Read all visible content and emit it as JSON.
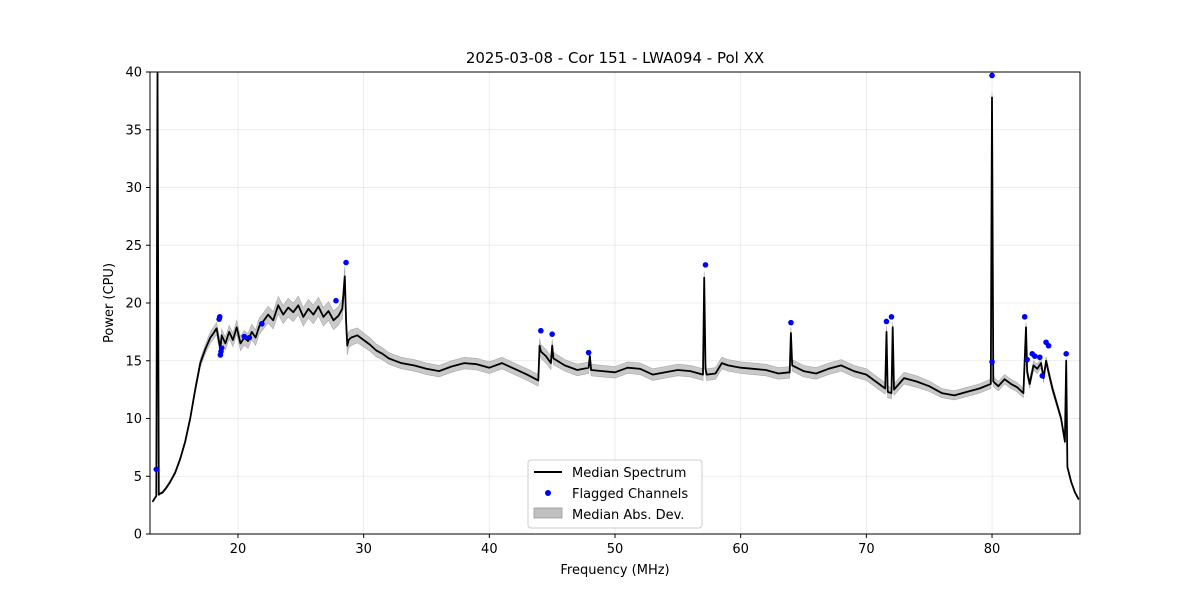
{
  "chart_data": {
    "type": "line",
    "title": "2025-03-08 - Cor 151 - LWA094 - Pol XX",
    "xlabel": "Frequency (MHz)",
    "ylabel": "Power (CPU)",
    "xlim": [
      13.0,
      87.0
    ],
    "ylim": [
      0,
      40
    ],
    "xticks": [
      20,
      30,
      40,
      50,
      60,
      70,
      80
    ],
    "yticks": [
      0,
      5,
      10,
      15,
      20,
      25,
      30,
      35,
      40
    ],
    "grid": true,
    "legend_position": "bottom-center",
    "legend": [
      "Median Spectrum",
      "Flagged Channels",
      "Median Abs. Dev."
    ],
    "colors": {
      "median": "#000000",
      "flagged": "#0000ff",
      "mad": "#c0c0c0"
    },
    "series": [
      {
        "name": "Median Spectrum",
        "x": [
          13.2,
          13.5,
          13.6,
          13.7,
          13.8,
          14.0,
          14.3,
          14.6,
          15.0,
          15.4,
          15.8,
          16.2,
          16.6,
          17.0,
          17.4,
          17.8,
          18.0,
          18.3,
          18.6,
          18.7,
          19.0,
          19.3,
          19.6,
          19.9,
          20.2,
          20.5,
          20.8,
          21.1,
          21.4,
          21.7,
          22.0,
          22.4,
          22.8,
          23.2,
          23.6,
          24.0,
          24.4,
          24.8,
          25.2,
          25.6,
          26.0,
          26.4,
          26.8,
          27.2,
          27.6,
          28.0,
          28.3,
          28.5,
          28.6,
          28.7,
          28.8,
          29.0,
          29.5,
          30.0,
          30.5,
          31.0,
          31.5,
          32.0,
          32.5,
          33.0,
          34.0,
          35.0,
          36.0,
          37.0,
          38.0,
          39.0,
          40.0,
          41.0,
          42.0,
          43.0,
          43.9,
          44.0,
          44.1,
          44.5,
          44.9,
          45.0,
          45.1,
          46.0,
          47.0,
          47.9,
          48.0,
          48.1,
          49.0,
          50.0,
          51.0,
          52.0,
          53.0,
          54.0,
          55.0,
          56.0,
          57.0,
          57.1,
          57.2,
          57.3,
          58.0,
          58.5,
          59.0,
          60.0,
          61.0,
          62.0,
          63.0,
          63.9,
          64.0,
          64.1,
          65.0,
          66.0,
          67.0,
          68.0,
          69.0,
          70.0,
          71.0,
          71.5,
          71.6,
          71.7,
          72.0,
          72.1,
          72.2,
          73.0,
          74.0,
          75.0,
          76.0,
          77.0,
          78.0,
          79.0,
          79.9,
          80.0,
          80.1,
          80.5,
          81.0,
          81.5,
          82.0,
          82.5,
          82.7,
          82.8,
          83.0,
          83.3,
          83.6,
          83.9,
          84.1,
          84.3,
          84.5,
          84.8,
          85.1,
          85.5,
          85.8,
          85.9,
          86.0,
          86.3,
          86.6,
          86.9
        ],
        "values": [
          2.8,
          3.3,
          40,
          3.4,
          3.5,
          3.6,
          4.0,
          4.5,
          5.3,
          6.5,
          8.0,
          10.0,
          12.5,
          14.8,
          16.0,
          17.0,
          17.3,
          17.8,
          16.0,
          17.2,
          16.5,
          17.5,
          16.8,
          17.9,
          16.5,
          17.0,
          16.7,
          17.5,
          17.0,
          18.0,
          18.4,
          19.0,
          18.5,
          19.8,
          19.0,
          19.6,
          19.2,
          19.8,
          18.8,
          19.5,
          19.0,
          19.7,
          18.8,
          19.3,
          18.5,
          18.9,
          19.5,
          22.3,
          18.4,
          16.3,
          16.8,
          17.0,
          17.2,
          16.8,
          16.4,
          15.9,
          15.6,
          15.2,
          15.0,
          14.8,
          14.6,
          14.3,
          14.1,
          14.5,
          14.8,
          14.7,
          14.4,
          14.8,
          14.3,
          13.8,
          13.3,
          16.3,
          15.8,
          15.4,
          14.8,
          16.3,
          15.2,
          14.6,
          14.2,
          14.4,
          15.4,
          14.2,
          14.1,
          14.0,
          14.4,
          14.3,
          13.8,
          14.0,
          14.2,
          14.1,
          13.8,
          22.2,
          14.3,
          13.8,
          13.9,
          14.8,
          14.6,
          14.4,
          14.3,
          14.2,
          13.9,
          14.0,
          17.4,
          14.6,
          14.1,
          13.9,
          14.3,
          14.6,
          14.1,
          13.8,
          13.0,
          12.6,
          17.5,
          12.3,
          12.2,
          17.9,
          12.5,
          13.5,
          13.2,
          12.8,
          12.2,
          12.0,
          12.3,
          12.6,
          13.0,
          37.8,
          13.2,
          12.8,
          13.4,
          13.0,
          12.7,
          12.2,
          17.9,
          14.0,
          13.0,
          14.6,
          14.3,
          14.8,
          13.5,
          15.0,
          14.0,
          12.6,
          11.5,
          10.0,
          8.0,
          15.0,
          5.8,
          4.5,
          3.6,
          3.0
        ]
      },
      {
        "name": "Flagged Channels",
        "x": [
          13.5,
          18.5,
          18.55,
          18.6,
          18.65,
          18.7,
          20.5,
          20.9,
          21.9,
          27.8,
          28.6,
          44.1,
          45.0,
          47.9,
          57.2,
          64.0,
          71.6,
          72.0,
          80.0,
          80.0,
          82.6,
          82.8,
          83.2,
          83.4,
          83.8,
          84.0,
          84.3,
          84.5,
          85.9
        ],
        "values": [
          5.6,
          18.6,
          18.8,
          15.5,
          15.8,
          16.1,
          17.1,
          17.0,
          18.2,
          20.2,
          23.5,
          17.6,
          17.3,
          15.7,
          23.3,
          18.3,
          18.4,
          18.8,
          39.7,
          14.9,
          18.8,
          15.1,
          15.6,
          15.4,
          15.3,
          13.7,
          16.6,
          16.3,
          15.6
        ]
      },
      {
        "name": "Median Abs. Dev.",
        "x": [
          13.2,
          14.0,
          16.0,
          18.0,
          20.0,
          22.0,
          24.0,
          26.0,
          28.0,
          28.6,
          28.8,
          30.0,
          32.0,
          34.0,
          36.0,
          38.0,
          40.0,
          42.0,
          43.9,
          44.0,
          46.0,
          48.0,
          50.0,
          52.0,
          54.0,
          56.0,
          58.0,
          60.0,
          62.0,
          64.0,
          66.0,
          68.0,
          70.0,
          72.0,
          74.0,
          76.0,
          78.0,
          80.0,
          82.0,
          84.0,
          85.0,
          86.0,
          86.9
        ],
        "values": [
          0.05,
          0.1,
          0.2,
          0.5,
          0.6,
          0.7,
          0.8,
          0.8,
          0.8,
          0.9,
          0.7,
          0.6,
          0.5,
          0.5,
          0.5,
          0.5,
          0.5,
          0.5,
          0.5,
          0.6,
          0.5,
          0.5,
          0.5,
          0.5,
          0.5,
          0.5,
          0.5,
          0.5,
          0.5,
          0.5,
          0.5,
          0.5,
          0.5,
          0.5,
          0.5,
          0.4,
          0.4,
          0.4,
          0.4,
          0.4,
          0.3,
          0.2,
          0.05
        ]
      }
    ]
  }
}
